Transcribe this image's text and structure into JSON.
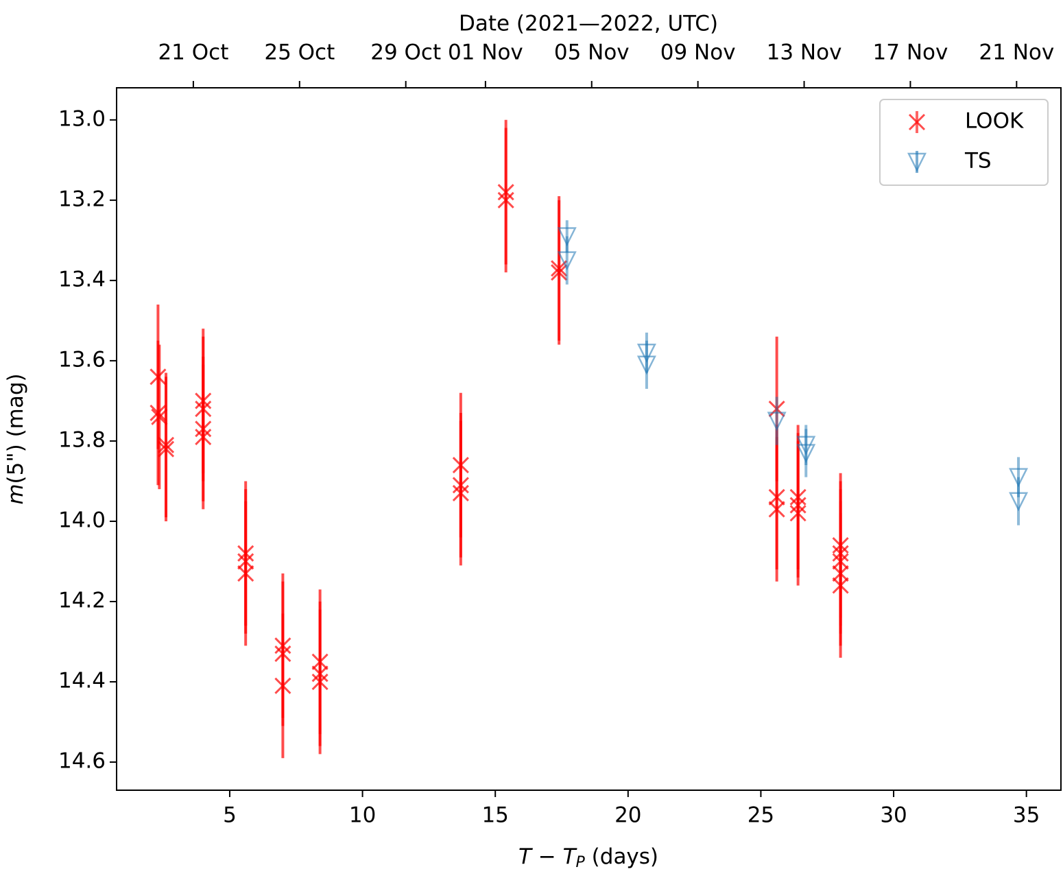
{
  "chart_data": {
    "type": "errorbar",
    "xlabel": [
      "T − T",
      "P",
      " (days)"
    ],
    "ylabel": [
      "m",
      "(5\") (mag)"
    ],
    "x2label": "Date (2021—2022, UTC)",
    "xlim": [
      0.74,
      36.3
    ],
    "ylim": [
      12.92,
      14.67
    ],
    "y_inverted": true,
    "xticks": [
      5,
      10,
      15,
      20,
      25,
      30,
      35
    ],
    "yticks": [
      {
        "value": 13.0,
        "label": "13.0"
      },
      {
        "value": 13.2,
        "label": "13.2"
      },
      {
        "value": 13.4,
        "label": "13.4"
      },
      {
        "value": 13.6,
        "label": "13.6"
      },
      {
        "value": 13.8,
        "label": "13.8"
      },
      {
        "value": 14.0,
        "label": "14.0"
      },
      {
        "value": 14.2,
        "label": "14.2"
      },
      {
        "value": 14.4,
        "label": "14.4"
      },
      {
        "value": 14.6,
        "label": "14.6"
      }
    ],
    "x2ticks": [
      {
        "value": 3.63,
        "label": "21 Oct"
      },
      {
        "value": 7.63,
        "label": "25 Oct"
      },
      {
        "value": 11.63,
        "label": "29 Oct"
      },
      {
        "value": 14.63,
        "label": "01 Nov"
      },
      {
        "value": 18.63,
        "label": "05 Nov"
      },
      {
        "value": 22.63,
        "label": "09 Nov"
      },
      {
        "value": 26.63,
        "label": "13 Nov"
      },
      {
        "value": 30.63,
        "label": "17 Nov"
      },
      {
        "value": 34.63,
        "label": "21 Nov"
      }
    ],
    "legend": "upper right",
    "series": [
      {
        "name": "LOOK",
        "color": "#ff0000",
        "marker": "x",
        "x": [
          2.3,
          2.3,
          2.35,
          2.6,
          2.6,
          4.0,
          4.0,
          4.0,
          4.0,
          5.6,
          5.6,
          5.6,
          7.0,
          7.0,
          7.0,
          8.4,
          8.4,
          8.4,
          13.7,
          13.7,
          13.7,
          15.4,
          15.4,
          17.4,
          17.4,
          25.6,
          25.6,
          25.6,
          26.4,
          26.4,
          26.4,
          28.0,
          28.0,
          28.0,
          28.0,
          28.0
        ],
        "values": [
          13.64,
          13.73,
          13.74,
          13.81,
          13.82,
          13.7,
          13.72,
          13.77,
          13.79,
          14.08,
          14.1,
          14.13,
          14.31,
          14.33,
          14.41,
          14.35,
          14.38,
          14.4,
          13.86,
          13.91,
          13.93,
          13.18,
          13.2,
          13.37,
          13.38,
          13.72,
          13.94,
          13.97,
          13.94,
          13.96,
          13.98,
          14.06,
          14.08,
          14.1,
          14.13,
          14.16
        ],
        "errors": [
          0.18,
          0.18,
          0.18,
          0.18,
          0.18,
          0.18,
          0.18,
          0.18,
          0.18,
          0.18,
          0.18,
          0.18,
          0.18,
          0.18,
          0.18,
          0.18,
          0.18,
          0.18,
          0.18,
          0.18,
          0.18,
          0.18,
          0.18,
          0.18,
          0.18,
          0.18,
          0.18,
          0.18,
          0.18,
          0.18,
          0.18,
          0.18,
          0.18,
          0.18,
          0.18,
          0.18
        ]
      },
      {
        "name": "TS",
        "color": "#1f77b4",
        "marker": "v",
        "x": [
          17.7,
          17.7,
          20.7,
          20.7,
          25.6,
          26.7,
          26.7,
          34.7,
          34.7
        ],
        "values": [
          13.29,
          13.35,
          13.58,
          13.61,
          13.75,
          13.81,
          13.83,
          13.89,
          13.95
        ],
        "errors": [
          0.04,
          0.06,
          0.05,
          0.06,
          0.06,
          0.05,
          0.06,
          0.05,
          0.06
        ]
      }
    ]
  }
}
